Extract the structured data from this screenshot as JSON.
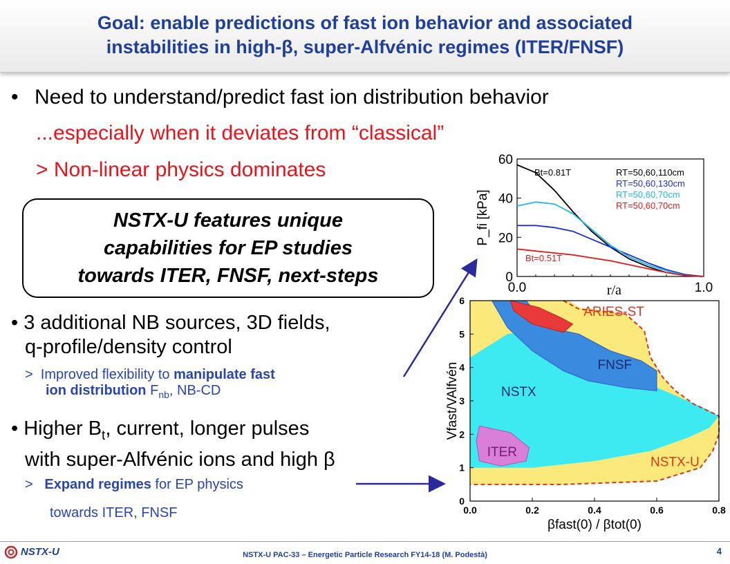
{
  "slide": {
    "title_line1": "Goal: enable predictions of fast ion behavior and associated",
    "title_line2": "instabilities in high-β, super-Alfvénic regimes (ITER/FNSF)",
    "bullet1": "Need to understand/predict fast ion distribution behavior",
    "bullet1_sub1": "...especially when it deviates from “classical”",
    "bullet1_sub2": "> Non-linear physics dominates",
    "callout_line1": "NSTX-U features unique",
    "callout_line2": "capabilities for EP studies",
    "callout_line3": "towards ITER, FNSF, next-steps",
    "bullet2_line1": "3 additional NB sources, 3D fields,",
    "bullet2_line2": "q-profile/density control",
    "bullet2_sub_a": "Improved flexibility to ",
    "bullet2_sub_b": "manipulate fast",
    "bullet2_sub_c": "ion distribution",
    "bullet2_sub_d": " F",
    "bullet2_sub_e": "nb",
    "bullet2_sub_f": ", NB-CD",
    "bullet3_a": "Higher B",
    "bullet3_b": "t",
    "bullet3_c": ", current, longer pulses",
    "bullet3_line2": "with super-Alfvénic ions and high β",
    "bullet3_sub_a": "Expand regimes",
    "bullet3_sub_b": " for EP physics",
    "bullet3_sub_line2": "towards ITER, FNSF",
    "footer": "NSTX-U PAC-33 – Energetic Particle Research FY14-18 (M. Podestà)",
    "logo": "NSTX-U",
    "page_number": "4"
  },
  "chart_data": [
    {
      "type": "line",
      "xlabel": "r/a",
      "ylabel": "P_fi [kPa]",
      "xlim": [
        0.0,
        1.0
      ],
      "ylim": [
        0,
        60
      ],
      "xticks": [
        "0.0",
        "1.0"
      ],
      "yticks": [
        "0",
        "20",
        "40",
        "60"
      ],
      "annotations": [
        "Bt=0.81T",
        "Bt=0.51T"
      ],
      "legend": [
        "RT=50,60,110cm",
        "RT=50,60,130cm",
        "RT=50,60,70cm",
        "RT=50,60,70cm"
      ],
      "series": [
        {
          "name": "RT=50,60,110cm",
          "color": "#000000",
          "x": [
            0,
            0.1,
            0.2,
            0.3,
            0.4,
            0.5,
            0.6,
            0.7,
            0.8,
            0.9,
            1.0
          ],
          "y": [
            57,
            53,
            44,
            33,
            23,
            15,
            9,
            5,
            2,
            0.5,
            0
          ]
        },
        {
          "name": "RT=50,60,130cm",
          "color": "#1a2ee0",
          "x": [
            0,
            0.1,
            0.2,
            0.3,
            0.4,
            0.5,
            0.6,
            0.7,
            0.8,
            0.9,
            1.0
          ],
          "y": [
            26,
            26,
            25,
            23,
            19,
            15,
            11,
            7,
            3.5,
            1,
            0
          ]
        },
        {
          "name": "RT=50,60,70cm",
          "color": "#21b6e8",
          "x": [
            0,
            0.1,
            0.2,
            0.3,
            0.4,
            0.5,
            0.6,
            0.7,
            0.8,
            0.9,
            1.0
          ],
          "y": [
            36,
            38,
            37,
            32,
            24,
            16,
            10,
            6,
            3,
            0.5,
            0
          ]
        },
        {
          "name": "RT=50,60,70cm",
          "color": "#e81818",
          "x": [
            0,
            0.1,
            0.2,
            0.3,
            0.4,
            0.5,
            0.6,
            0.7,
            0.8,
            0.9,
            1.0
          ],
          "y": [
            14,
            13,
            12,
            11,
            9.5,
            8,
            6,
            4,
            2,
            0.5,
            0
          ]
        }
      ]
    },
    {
      "type": "area",
      "xlabel": "βfast(0) / βtot(0)",
      "ylabel": "Vfast/VAlfvén",
      "xlim": [
        0.0,
        0.8
      ],
      "ylim": [
        0,
        6
      ],
      "xticks": [
        "0.0",
        "0.2",
        "0.4",
        "0.6",
        "0.8"
      ],
      "yticks": [
        "0",
        "1",
        "2",
        "3",
        "4",
        "5",
        "6"
      ],
      "regions": [
        {
          "name": "NSTX-U",
          "color": "#fbe97c"
        },
        {
          "name": "NSTX",
          "color": "#3deaf2"
        },
        {
          "name": "FNSF",
          "color": "#3a8be0"
        },
        {
          "name": "ARIES-ST",
          "color": "#e83a3a"
        },
        {
          "name": "ITER",
          "color": "#d97fd9"
        }
      ],
      "labels": [
        "ARIES-ST",
        "FNSF",
        "NSTX",
        "ITER",
        "NSTX-U"
      ]
    }
  ]
}
